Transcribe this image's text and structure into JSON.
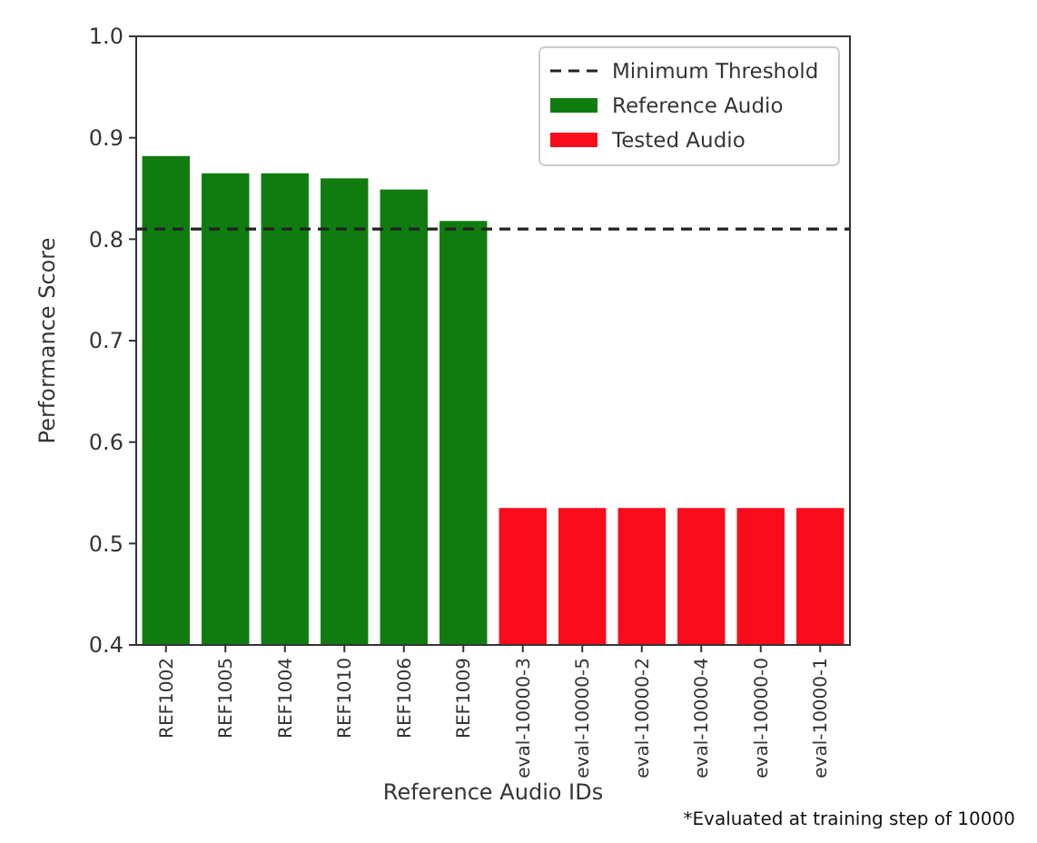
{
  "chart_data": {
    "type": "bar",
    "xlabel": "Reference Audio IDs",
    "ylabel": "Performance Score",
    "categories": [
      "REF1002",
      "REF1005",
      "REF1004",
      "REF1010",
      "REF1006",
      "REF1009",
      "eval-10000-3",
      "eval-10000-5",
      "eval-10000-2",
      "eval-10000-4",
      "eval-10000-0",
      "eval-10000-1"
    ],
    "series": [
      {
        "name": "Reference Audio",
        "color": "#107c10",
        "values": [
          0.882,
          0.865,
          0.865,
          0.86,
          0.849,
          0.818,
          null,
          null,
          null,
          null,
          null,
          null
        ]
      },
      {
        "name": "Tested Audio",
        "color": "#f80c1c",
        "values": [
          null,
          null,
          null,
          null,
          null,
          null,
          0.535,
          0.535,
          0.535,
          0.535,
          0.535,
          0.535
        ]
      }
    ],
    "ylim": [
      0.4,
      1.0
    ],
    "yticks": [
      0.4,
      0.5,
      0.6,
      0.7,
      0.8,
      0.9,
      {
        "value": 1,
        "label": "1.0"
      }
    ],
    "ref_lines": [
      {
        "axis": "y",
        "value": 0.81,
        "label": "Minimum Threshold",
        "color": "#222222",
        "line_style": "dashed"
      }
    ],
    "legend": "top right",
    "annotations": [
      "*Evaluated at training step of 10000"
    ]
  }
}
